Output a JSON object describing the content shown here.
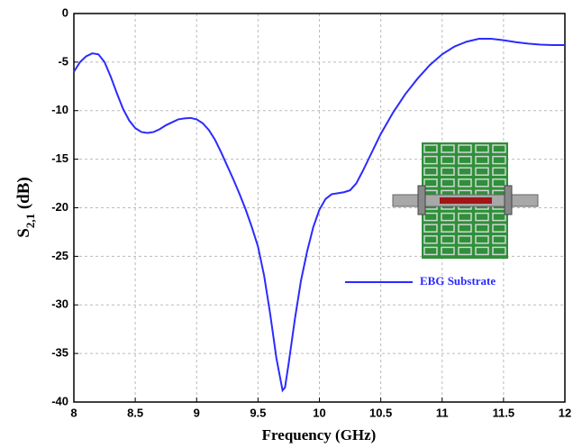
{
  "chart_data": {
    "type": "line",
    "xlabel": "Frequency (GHz)",
    "ylabel": {
      "main": "S",
      "subscript": "2,1",
      "rest": " (dB)"
    },
    "xlim": [
      8,
      12
    ],
    "xticks": [
      8,
      8.5,
      9,
      9.5,
      10,
      10.5,
      11,
      11.5,
      12
    ],
    "ylim": [
      -40,
      0
    ],
    "yticks": [
      0,
      -5,
      -10,
      -15,
      -20,
      -25,
      -30,
      -35,
      -40
    ],
    "grid": true,
    "legend": "right",
    "x": [
      8.0,
      8.05,
      8.1,
      8.15,
      8.2,
      8.25,
      8.3,
      8.35,
      8.4,
      8.45,
      8.5,
      8.55,
      8.6,
      8.65,
      8.7,
      8.75,
      8.8,
      8.85,
      8.9,
      8.95,
      9.0,
      9.05,
      9.1,
      9.15,
      9.2,
      9.25,
      9.3,
      9.35,
      9.4,
      9.45,
      9.5,
      9.55,
      9.6,
      9.65,
      9.7,
      9.72,
      9.75,
      9.8,
      9.85,
      9.9,
      9.95,
      10.0,
      10.05,
      10.1,
      10.15,
      10.2,
      10.25,
      10.3,
      10.35,
      10.4,
      10.45,
      10.5,
      10.6,
      10.7,
      10.8,
      10.9,
      11.0,
      11.1,
      11.2,
      11.3,
      11.4,
      11.5,
      11.6,
      11.7,
      11.8,
      11.9,
      12.0
    ],
    "series": [
      {
        "name": "EBG Substrate",
        "color": "#2b2bff",
        "values": [
          -6.0,
          -5.0,
          -4.4,
          -4.1,
          -4.2,
          -5.0,
          -6.5,
          -8.2,
          -9.8,
          -11.0,
          -11.8,
          -12.2,
          -12.3,
          -12.2,
          -11.9,
          -11.5,
          -11.2,
          -10.9,
          -10.8,
          -10.75,
          -10.9,
          -11.3,
          -12.0,
          -13.0,
          -14.3,
          -15.7,
          -17.1,
          -18.6,
          -20.2,
          -22.0,
          -24.0,
          -27.0,
          -31.0,
          -35.5,
          -38.8,
          -38.5,
          -36.0,
          -31.5,
          -27.5,
          -24.5,
          -22.0,
          -20.2,
          -19.1,
          -18.6,
          -18.5,
          -18.4,
          -18.2,
          -17.5,
          -16.3,
          -15.0,
          -13.7,
          -12.4,
          -10.2,
          -8.3,
          -6.7,
          -5.3,
          -4.2,
          -3.4,
          -2.9,
          -2.6,
          -2.6,
          -2.75,
          -2.95,
          -3.1,
          -3.2,
          -3.25,
          -3.25
        ]
      }
    ]
  }
}
